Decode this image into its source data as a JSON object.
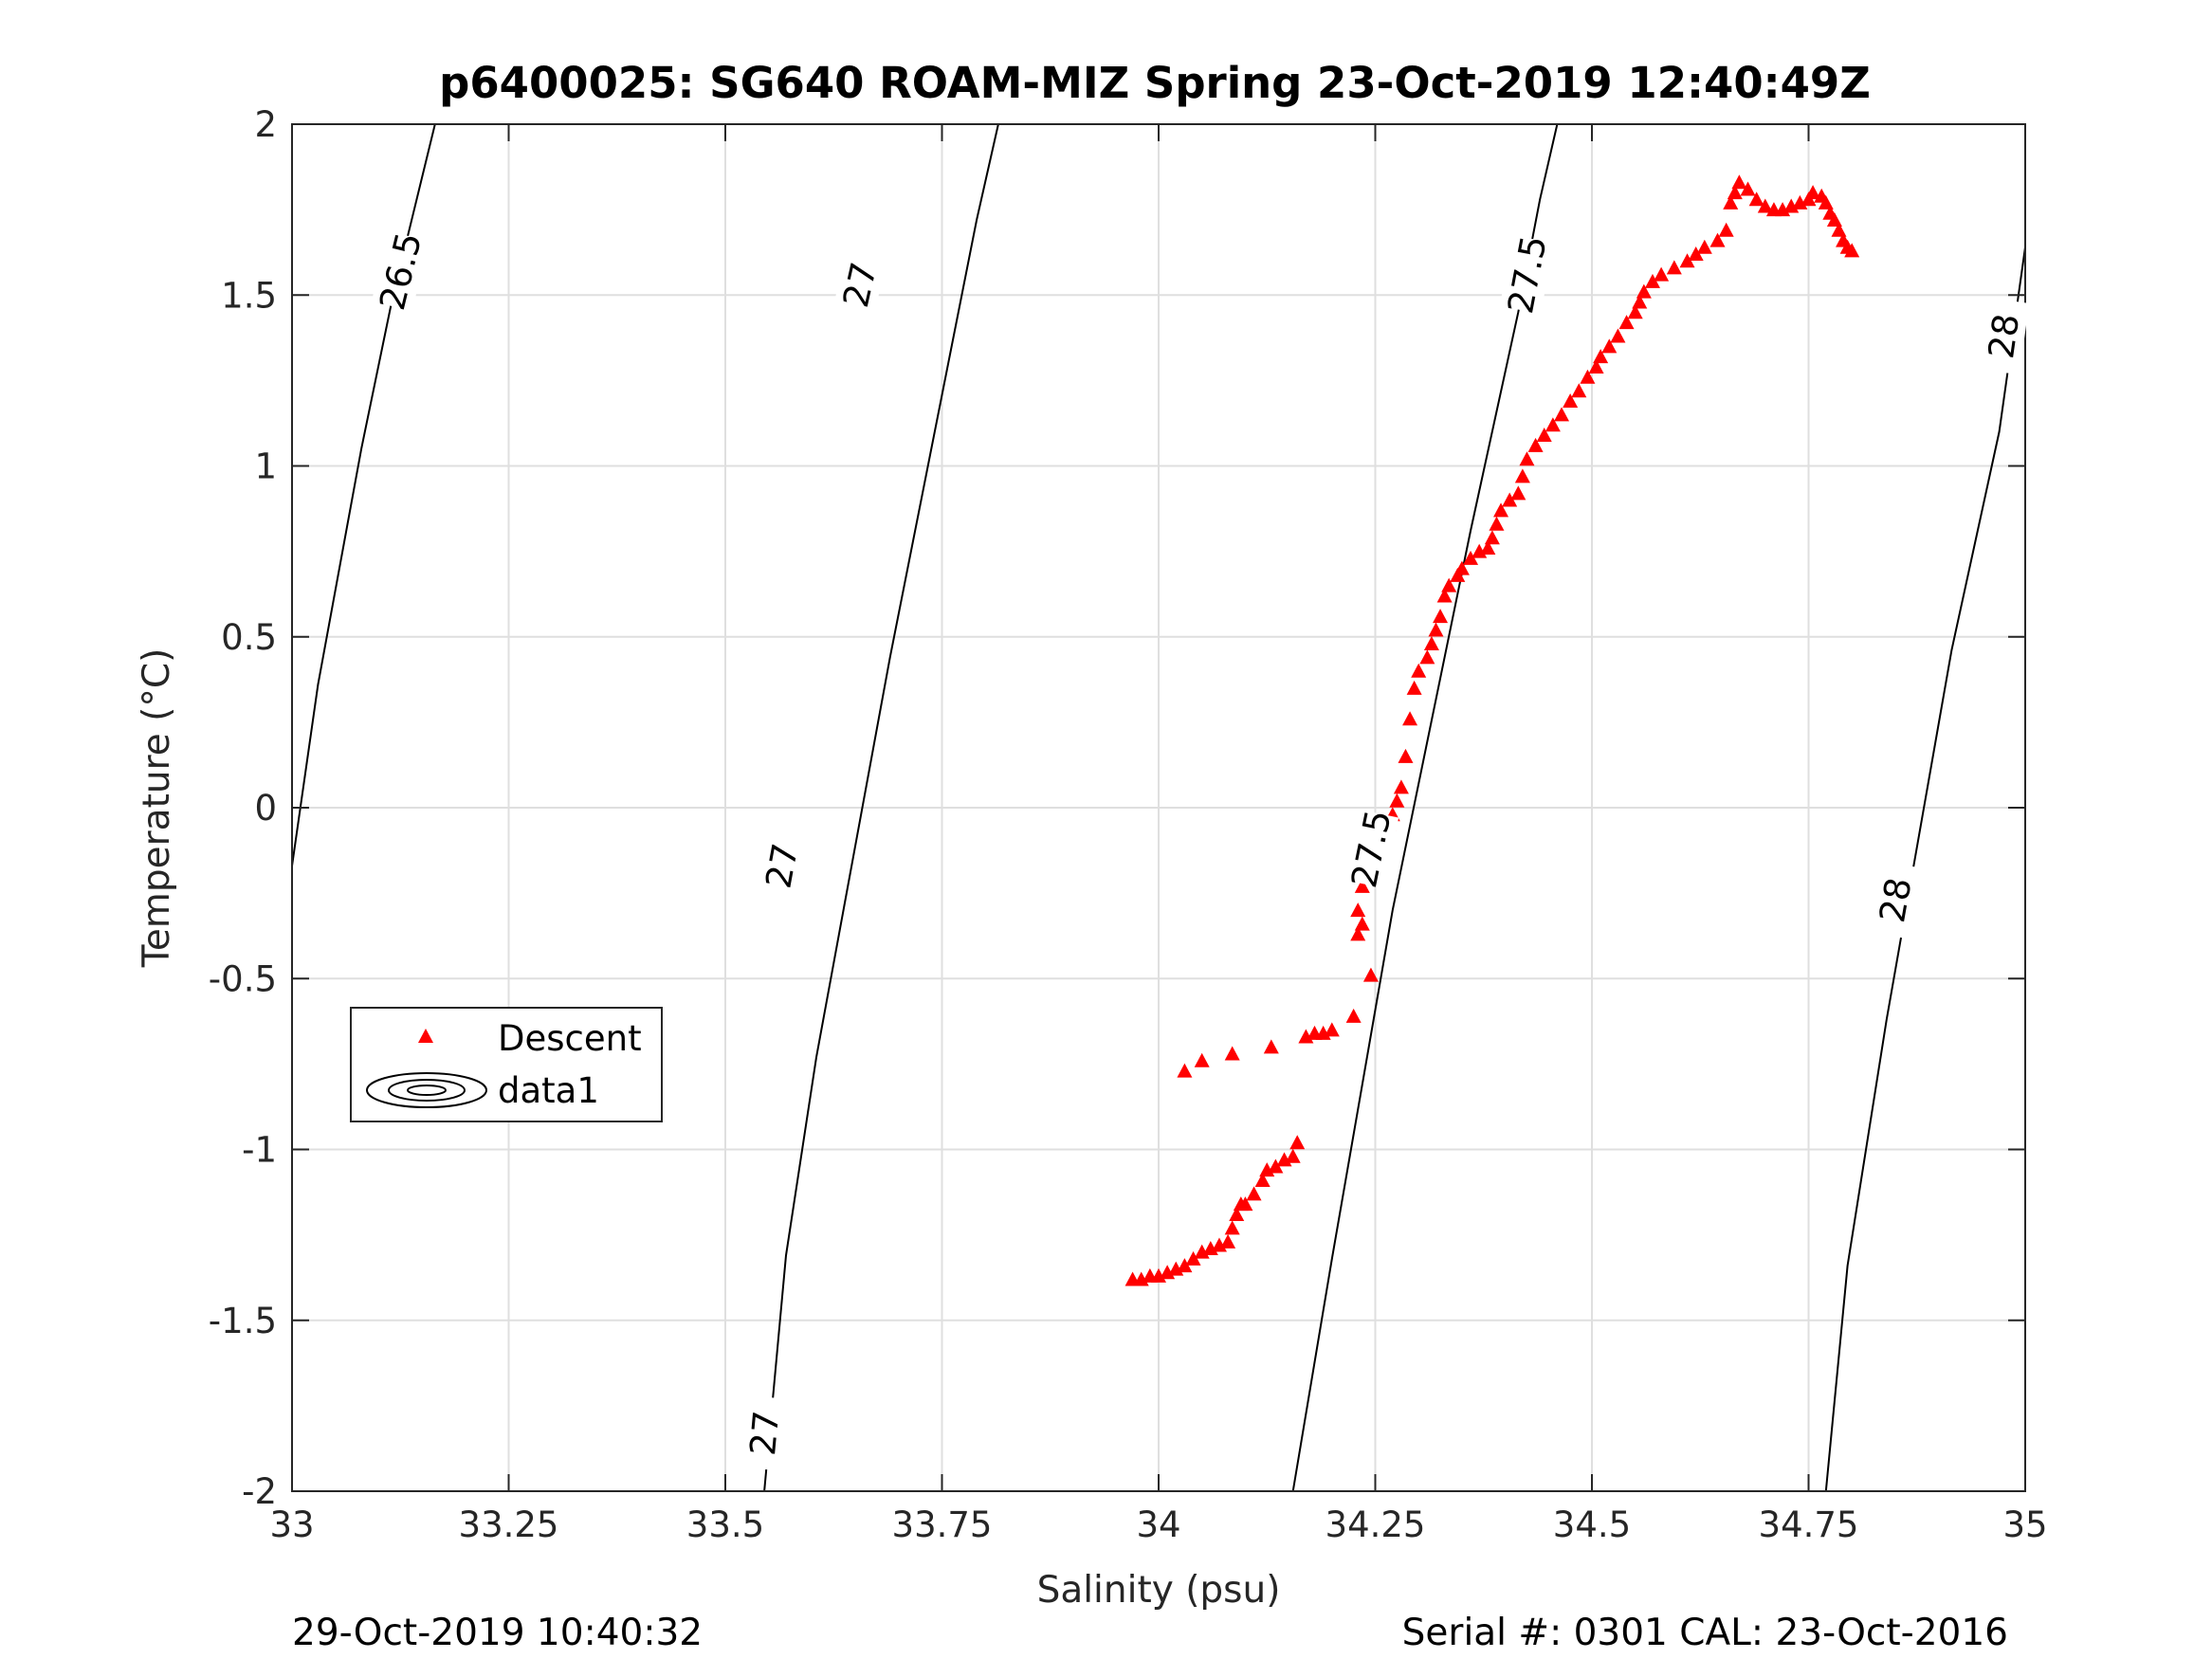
{
  "chart_data": {
    "type": "scatter",
    "title": "p6400025: SG640 ROAM-MIZ Spring 23-Oct-2019 12:40:49Z",
    "xlabel": "Salinity (psu)",
    "ylabel": "Temperature (°C)",
    "xlim": [
      33,
      35
    ],
    "ylim": [
      -2,
      2
    ],
    "xticks": [
      33,
      33.25,
      33.5,
      33.75,
      34,
      34.25,
      34.5,
      34.75,
      35
    ],
    "xtick_labels": [
      "33",
      "33.25",
      "33.5",
      "33.75",
      "34",
      "34.25",
      "34.5",
      "34.75",
      "35"
    ],
    "yticks": [
      2,
      1.5,
      1,
      0.5,
      0,
      -0.5,
      -1,
      -1.5,
      -2
    ],
    "ytick_labels": [
      "2",
      "1.5",
      "1",
      "0.5",
      "0",
      "-0.5",
      "-1",
      "-1.5",
      "-2"
    ],
    "grid": true,
    "legend_placement": "lower-left",
    "legend": [
      {
        "label": "Descent",
        "marker": "triangle",
        "color": "#ff0000"
      },
      {
        "label": "data1",
        "marker": "contour",
        "color": "#000000"
      }
    ],
    "series": [
      {
        "name": "Descent",
        "color": "#ff0000",
        "marker": "triangle",
        "points": [
          [
            33.97,
            -1.38
          ],
          [
            33.98,
            -1.38
          ],
          [
            33.99,
            -1.37
          ],
          [
            34.0,
            -1.37
          ],
          [
            34.01,
            -1.36
          ],
          [
            34.02,
            -1.35
          ],
          [
            34.03,
            -1.34
          ],
          [
            34.04,
            -1.32
          ],
          [
            34.05,
            -1.3
          ],
          [
            34.06,
            -1.29
          ],
          [
            34.07,
            -1.28
          ],
          [
            34.08,
            -1.27
          ],
          [
            34.085,
            -1.23
          ],
          [
            34.09,
            -1.19
          ],
          [
            34.095,
            -1.16
          ],
          [
            34.1,
            -1.16
          ],
          [
            34.11,
            -1.13
          ],
          [
            34.12,
            -1.09
          ],
          [
            34.125,
            -1.06
          ],
          [
            34.135,
            -1.05
          ],
          [
            34.145,
            -1.03
          ],
          [
            34.155,
            -1.02
          ],
          [
            34.16,
            -0.98
          ],
          [
            34.03,
            -0.77
          ],
          [
            34.05,
            -0.74
          ],
          [
            34.085,
            -0.72
          ],
          [
            34.13,
            -0.7
          ],
          [
            34.17,
            -0.67
          ],
          [
            34.18,
            -0.66
          ],
          [
            34.19,
            -0.66
          ],
          [
            34.2,
            -0.65
          ],
          [
            34.225,
            -0.61
          ],
          [
            34.245,
            -0.49
          ],
          [
            34.23,
            -0.37
          ],
          [
            34.235,
            -0.34
          ],
          [
            34.23,
            -0.3
          ],
          [
            34.235,
            -0.23
          ],
          [
            34.24,
            -0.19
          ],
          [
            34.245,
            -0.16
          ],
          [
            34.25,
            -0.13
          ],
          [
            34.255,
            -0.11
          ],
          [
            34.26,
            -0.08
          ],
          [
            34.265,
            -0.05
          ],
          [
            34.27,
            -0.02
          ],
          [
            34.275,
            0.02
          ],
          [
            34.28,
            0.06
          ],
          [
            34.285,
            0.15
          ],
          [
            34.29,
            0.26
          ],
          [
            34.295,
            0.35
          ],
          [
            34.3,
            0.4
          ],
          [
            34.31,
            0.44
          ],
          [
            34.315,
            0.48
          ],
          [
            34.32,
            0.52
          ],
          [
            34.325,
            0.56
          ],
          [
            34.33,
            0.62
          ],
          [
            34.335,
            0.65
          ],
          [
            34.345,
            0.68
          ],
          [
            34.35,
            0.7
          ],
          [
            34.36,
            0.73
          ],
          [
            34.37,
            0.75
          ],
          [
            34.38,
            0.76
          ],
          [
            34.385,
            0.79
          ],
          [
            34.39,
            0.83
          ],
          [
            34.395,
            0.87
          ],
          [
            34.405,
            0.9
          ],
          [
            34.415,
            0.92
          ],
          [
            34.42,
            0.97
          ],
          [
            34.425,
            1.02
          ],
          [
            34.435,
            1.06
          ],
          [
            34.445,
            1.09
          ],
          [
            34.455,
            1.12
          ],
          [
            34.465,
            1.15
          ],
          [
            34.475,
            1.19
          ],
          [
            34.485,
            1.22
          ],
          [
            34.495,
            1.26
          ],
          [
            34.505,
            1.29
          ],
          [
            34.51,
            1.32
          ],
          [
            34.52,
            1.35
          ],
          [
            34.53,
            1.38
          ],
          [
            34.54,
            1.42
          ],
          [
            34.55,
            1.45
          ],
          [
            34.555,
            1.48
          ],
          [
            34.56,
            1.51
          ],
          [
            34.57,
            1.54
          ],
          [
            34.58,
            1.56
          ],
          [
            34.595,
            1.58
          ],
          [
            34.61,
            1.6
          ],
          [
            34.62,
            1.62
          ],
          [
            34.63,
            1.64
          ],
          [
            34.645,
            1.66
          ],
          [
            34.655,
            1.69
          ],
          [
            34.66,
            1.77
          ],
          [
            34.665,
            1.8
          ],
          [
            34.67,
            1.83
          ],
          [
            34.68,
            1.81
          ],
          [
            34.69,
            1.78
          ],
          [
            34.7,
            1.76
          ],
          [
            34.71,
            1.75
          ],
          [
            34.72,
            1.75
          ],
          [
            34.73,
            1.76
          ],
          [
            34.74,
            1.77
          ],
          [
            34.75,
            1.78
          ],
          [
            34.755,
            1.8
          ],
          [
            34.765,
            1.79
          ],
          [
            34.77,
            1.77
          ],
          [
            34.775,
            1.74
          ],
          [
            34.78,
            1.72
          ],
          [
            34.785,
            1.69
          ],
          [
            34.79,
            1.66
          ],
          [
            34.795,
            1.64
          ],
          [
            34.8,
            1.63
          ]
        ]
      }
    ],
    "contours": [
      {
        "level_label": "26.5",
        "points": [
          [
            33.0,
            -0.17
          ],
          [
            33.03,
            0.36
          ],
          [
            33.08,
            1.05
          ],
          [
            33.115,
            1.48
          ],
          [
            33.165,
            2.0
          ]
        ],
        "labels": [
          {
            "x": 33.125,
            "y": 1.57,
            "text": "26.5"
          }
        ]
      },
      {
        "level_label": "27",
        "points": [
          [
            33.545,
            -2.0
          ],
          [
            33.57,
            -1.31
          ],
          [
            33.605,
            -0.73
          ],
          [
            33.69,
            0.44
          ],
          [
            33.79,
            1.72
          ],
          [
            33.815,
            2.0
          ]
        ],
        "labels": [
          {
            "x": 33.655,
            "y": 1.53,
            "text": "27"
          },
          {
            "x": 33.565,
            "y": -0.17,
            "text": "27"
          },
          {
            "x": 33.545,
            "y": -1.83,
            "text": "27"
          }
        ]
      },
      {
        "level_label": "27.5",
        "points": [
          [
            34.155,
            -2.0
          ],
          [
            34.2,
            -1.32
          ],
          [
            34.27,
            -0.3
          ],
          [
            34.36,
            0.81
          ],
          [
            34.415,
            1.45
          ],
          [
            34.44,
            1.78
          ],
          [
            34.46,
            2.0
          ]
        ],
        "labels": [
          {
            "x": 34.425,
            "y": 1.56,
            "text": "27.5"
          },
          {
            "x": 34.245,
            "y": -0.12,
            "text": "27.5"
          }
        ]
      },
      {
        "level_label": "28",
        "points": [
          [
            34.77,
            -2.0
          ],
          [
            34.795,
            -1.34
          ],
          [
            34.84,
            -0.62
          ],
          [
            34.915,
            0.46
          ],
          [
            34.97,
            1.1
          ],
          [
            35.0,
            1.64
          ]
        ],
        "labels": [
          {
            "x": 34.975,
            "y": 1.38,
            "text": "28"
          },
          {
            "x": 34.85,
            "y": -0.27,
            "text": "28"
          }
        ]
      }
    ]
  },
  "footer": {
    "left": "29-Oct-2019 10:40:32",
    "right": "Serial #: 0301  CAL: 23-Oct-2016"
  }
}
